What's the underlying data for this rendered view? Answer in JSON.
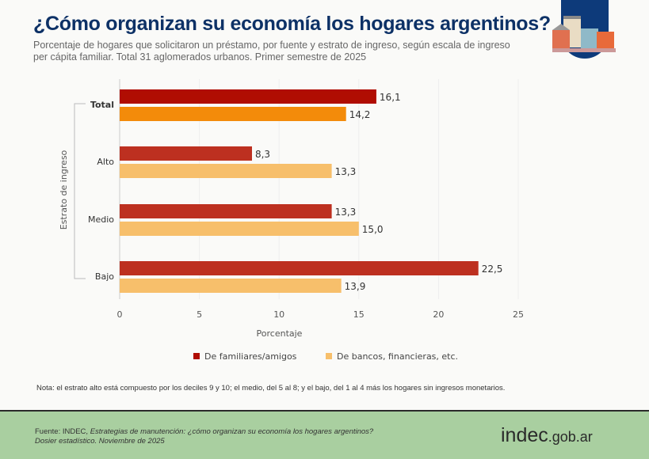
{
  "header": {
    "title": "¿Cómo organizan su economía los hogares argentinos?",
    "subtitle": "Porcentaje de hogares que solicitaron un préstamo, por fuente y estrato de ingreso, según escala de ingreso per cápita familiar. Total 31 aglomerados urbanos. Primer semestre de 2025"
  },
  "chart_data": {
    "type": "bar",
    "orientation": "horizontal",
    "categories": [
      "Total",
      "Alto",
      "Medio",
      "Bajo"
    ],
    "series": [
      {
        "name": "De familiares/amigos",
        "values": [
          16.1,
          8.3,
          13.3,
          22.5
        ],
        "labels": [
          "16,1",
          "8,3",
          "13,3",
          "22,5"
        ],
        "color": "#bd3020",
        "total_color": "#b00d02"
      },
      {
        "name": "De bancos, financieras, etc.",
        "values": [
          14.2,
          13.3,
          15.0,
          13.9
        ],
        "labels": [
          "14,2",
          "13,3",
          "15,0",
          "13,9"
        ],
        "color": "#f7bf6b",
        "total_color": "#f38b0a"
      }
    ],
    "xlabel": "Porcentaje",
    "ylabel": "Estrato de ingreso",
    "xlim": [
      0,
      25
    ],
    "xticks": [
      "0",
      "5",
      "10",
      "15",
      "20",
      "25"
    ],
    "grid": true,
    "legend": "bottom"
  },
  "note": "Nota: el estrato alto está compuesto por los deciles 9 y 10; el medio, del 5 al 8; y el bajo, del 1 al 4 más los hogares sin ingresos monetarios.",
  "footer": {
    "source_prefix": "Fuente: INDEC, ",
    "source_title": "Estrategias de manutención: ¿cómo organizan su economía los hogares argentinos?",
    "source_line2": "Dosier estadístico. Noviembre de 2025",
    "logo_main": "indec",
    "logo_suffix": ".gob.ar"
  }
}
